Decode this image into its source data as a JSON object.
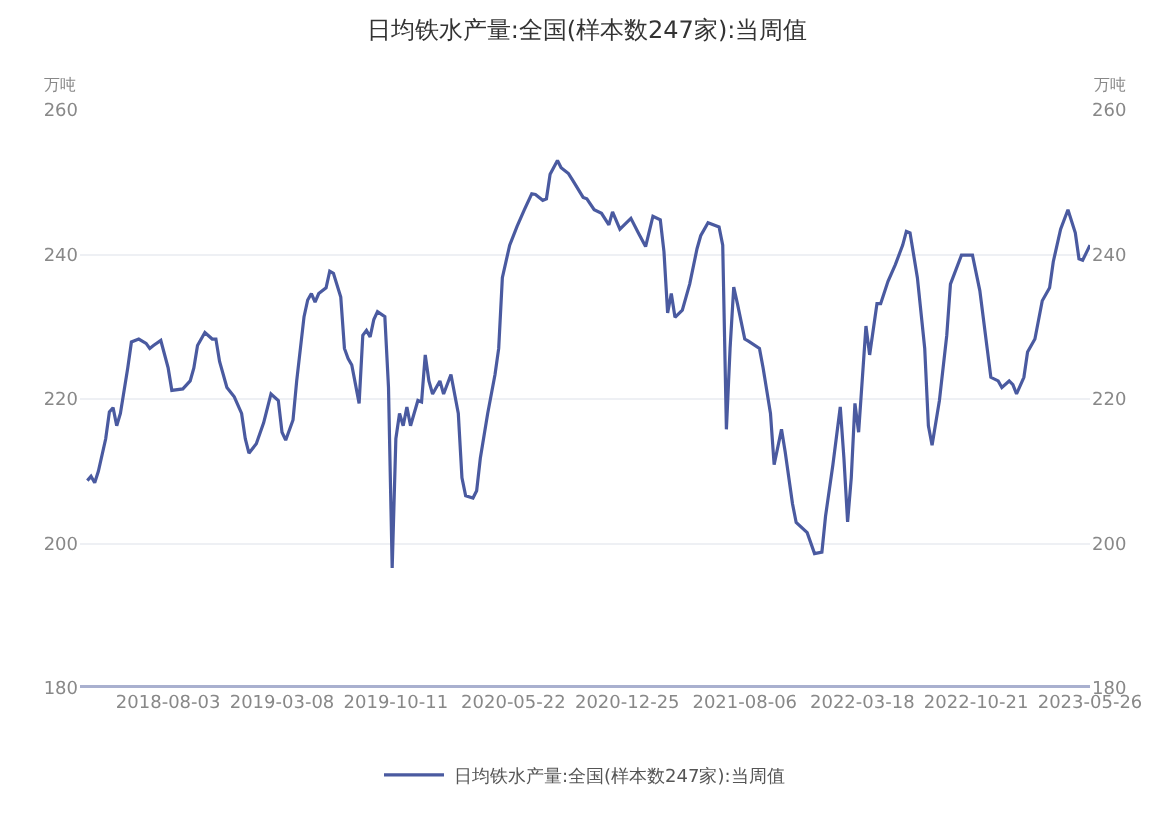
{
  "chart_data": {
    "type": "line",
    "title": "日均铁水产量:全国(样本数247家):当周值",
    "ylabel": "万吨",
    "y2label": "万吨",
    "ylim": [
      180,
      260
    ],
    "yticks": [
      180,
      200,
      220,
      240,
      260
    ],
    "y2lim": [
      180,
      260
    ],
    "y2ticks": [
      180,
      200,
      220,
      240,
      260
    ],
    "xlim": [
      "2018-02-16",
      "2023-05-26"
    ],
    "xticks": [
      {
        "value": "2018-08-03",
        "label": "2018-08-03"
      },
      {
        "value": "2019-03-08",
        "label": "2019-03-08"
      },
      {
        "value": "2019-10-11",
        "label": "2019-10-11"
      },
      {
        "value": "2020-05-22",
        "label": "2020-05-22"
      },
      {
        "value": "2020-12-25",
        "label": "2020-12-25"
      },
      {
        "value": "2021-08-06",
        "label": "2021-08-06"
      },
      {
        "value": "2022-03-18",
        "label": "2022-03-18"
      },
      {
        "value": "2022-10-21",
        "label": "2022-10-21"
      },
      {
        "value": "2023-05-26",
        "label": "2023-05-26"
      }
    ],
    "grid": "y",
    "legend": "bottom",
    "marker": "none",
    "line_style": "solid",
    "x": [
      "2018-03-02",
      "2018-03-09",
      "2018-03-16",
      "2018-03-23",
      "2018-04-06",
      "2018-04-13",
      "2018-04-20",
      "2018-04-27",
      "2018-05-04",
      "2018-05-18",
      "2018-05-25",
      "2018-06-08",
      "2018-06-22",
      "2018-06-29",
      "2018-07-06",
      "2018-07-20",
      "2018-08-03",
      "2018-08-10",
      "2018-08-31",
      "2018-09-14",
      "2018-09-21",
      "2018-09-28",
      "2018-10-12",
      "2018-10-26",
      "2018-11-02",
      "2018-11-09",
      "2018-11-23",
      "2018-12-07",
      "2018-12-21",
      "2018-12-28",
      "2019-01-04",
      "2019-01-18",
      "2019-02-01",
      "2019-02-15",
      "2019-03-01",
      "2019-03-08",
      "2019-03-15",
      "2019-03-29",
      "2019-04-05",
      "2019-04-19",
      "2019-04-26",
      "2019-05-03",
      "2019-05-10",
      "2019-05-17",
      "2019-05-31",
      "2019-06-07",
      "2019-06-14",
      "2019-06-28",
      "2019-07-05",
      "2019-07-12",
      "2019-07-19",
      "2019-08-02",
      "2019-08-09",
      "2019-08-16",
      "2019-08-23",
      "2019-08-30",
      "2019-09-06",
      "2019-09-20",
      "2019-09-27",
      "2019-10-04",
      "2019-10-11",
      "2019-10-18",
      "2019-10-25",
      "2019-11-01",
      "2019-11-08",
      "2019-11-22",
      "2019-11-29",
      "2019-12-06",
      "2019-12-13",
      "2019-12-20",
      "2020-01-03",
      "2020-01-10",
      "2020-01-24",
      "2020-02-07",
      "2020-02-14",
      "2020-02-21",
      "2020-03-06",
      "2020-03-13",
      "2020-03-20",
      "2020-04-03",
      "2020-04-17",
      "2020-04-24",
      "2020-05-01",
      "2020-05-15",
      "2020-05-29",
      "2020-06-12",
      "2020-06-26",
      "2020-07-03",
      "2020-07-17",
      "2020-07-24",
      "2020-07-31",
      "2020-08-14",
      "2020-08-21",
      "2020-09-04",
      "2020-09-11",
      "2020-10-02",
      "2020-10-09",
      "2020-10-23",
      "2020-11-06",
      "2020-11-20",
      "2020-11-27",
      "2020-12-11",
      "2021-01-01",
      "2021-01-15",
      "2021-01-29",
      "2021-02-12",
      "2021-02-26",
      "2021-03-05",
      "2021-03-12",
      "2021-03-19",
      "2021-03-26",
      "2021-04-09",
      "2021-04-23",
      "2021-05-07",
      "2021-05-14",
      "2021-05-28",
      "2021-06-18",
      "2021-06-25",
      "2021-07-02",
      "2021-07-09",
      "2021-07-16",
      "2021-07-23",
      "2021-08-06",
      "2021-08-13",
      "2021-09-03",
      "2021-09-10",
      "2021-09-24",
      "2021-10-01",
      "2021-10-15",
      "2021-10-22",
      "2021-11-05",
      "2021-11-12",
      "2021-12-03",
      "2021-12-17",
      "2021-12-31",
      "2022-01-07",
      "2022-01-21",
      "2022-02-04",
      "2022-02-11",
      "2022-02-18",
      "2022-02-25",
      "2022-03-04",
      "2022-03-11",
      "2022-03-25",
      "2022-04-01",
      "2022-04-15",
      "2022-04-22",
      "2022-05-06",
      "2022-05-20",
      "2022-06-03",
      "2022-06-10",
      "2022-06-17",
      "2022-07-01",
      "2022-07-15",
      "2022-07-22",
      "2022-07-29",
      "2022-08-12",
      "2022-08-26",
      "2022-09-02",
      "2022-09-23",
      "2022-10-14",
      "2022-10-28",
      "2022-11-11",
      "2022-11-18",
      "2022-12-02",
      "2022-12-09",
      "2022-12-23",
      "2022-12-30",
      "2023-01-06",
      "2023-01-20",
      "2023-01-27",
      "2023-02-10",
      "2023-02-24",
      "2023-03-10",
      "2023-03-17",
      "2023-03-31",
      "2023-04-14",
      "2023-04-28",
      "2023-05-05",
      "2023-05-12",
      "2023-05-26"
    ],
    "series": [
      {
        "name": "日均铁水产量:全国(样本数247家):当周值",
        "color": "#4a5aa0",
        "values": [
          208.7,
          209.3,
          208.4,
          210,
          214.5,
          218.2,
          218.8,
          216.3,
          218,
          224.3,
          227.9,
          228.3,
          227.7,
          227,
          227.4,
          228.1,
          224.3,
          221.2,
          221.4,
          222.5,
          224.3,
          227.4,
          229.2,
          228.3,
          228.3,
          225.2,
          221.6,
          220.3,
          218,
          214.5,
          212.5,
          213.8,
          216.7,
          220.7,
          219.8,
          215.4,
          214.3,
          217.1,
          222.5,
          231.4,
          233.7,
          234.6,
          233.4,
          234.6,
          235.4,
          237.7,
          237.4,
          234.1,
          227,
          225.6,
          224.7,
          219.4,
          228.8,
          229.5,
          228.6,
          231,
          232.1,
          231.4,
          221.6,
          196.6,
          214.5,
          218,
          216.3,
          218.9,
          216.3,
          219.8,
          219.6,
          226.1,
          222.5,
          220.7,
          222.5,
          220.7,
          223.4,
          218,
          209.1,
          206.6,
          206.3,
          207.3,
          211.8,
          218,
          223.4,
          227,
          236.8,
          241.3,
          243.9,
          246.2,
          248.4,
          248.3,
          247.5,
          247.7,
          251.1,
          253,
          252,
          251.2,
          250.4,
          247.9,
          247.7,
          246.2,
          245.7,
          244.1,
          245.9,
          243.5,
          245,
          243,
          241.1,
          245.3,
          244.8,
          240.4,
          231.9,
          234.6,
          231.3,
          232.3,
          235.9,
          240.8,
          242.6,
          244.4,
          243.8,
          241.3,
          215.8,
          227,
          235.5,
          233.2,
          228.3,
          228,
          227,
          224.3,
          218,
          210.9,
          215.8,
          212.7,
          205.5,
          202.9,
          201.5,
          198.6,
          198.8,
          203.8,
          210.9,
          218.9,
          211.8,
          203,
          209.1,
          219.4,
          215.4,
          230.1,
          226.1,
          233.2,
          233.2,
          236.3,
          238.6,
          241.3,
          243.2,
          243,
          236.8,
          227,
          216.3,
          213.6,
          219.8,
          228.8,
          235.9,
          239.9,
          239.9,
          235,
          227,
          223,
          222.5,
          221.6,
          222.5,
          222,
          220.7,
          223,
          226.5,
          228.3,
          233.6,
          235.4,
          239,
          243.5,
          246.2,
          243,
          239.4,
          239.2,
          241.3
        ]
      }
    ]
  }
}
